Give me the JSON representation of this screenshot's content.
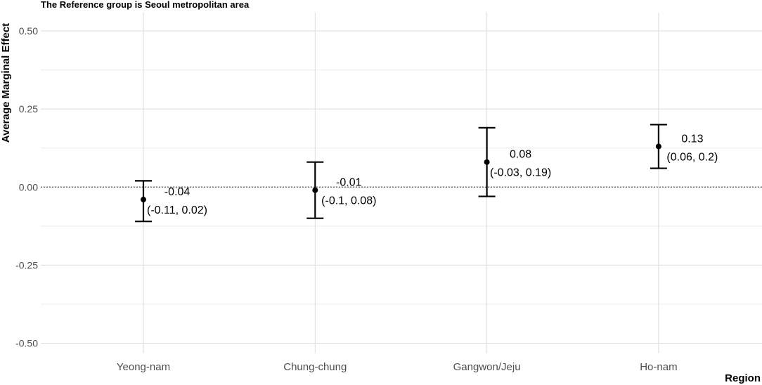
{
  "chart_data": {
    "type": "scatter",
    "title": "The Reference group is Seoul metropolitan area",
    "xlabel": "Region",
    "ylabel": "Average Marginal Effect",
    "categories": [
      "Yeong-nam",
      "Chung-chung",
      "Gangwon/Jeju",
      "Ho-nam"
    ],
    "y_ticks": [
      "0.50",
      "0.25",
      "0.00",
      "-0.25",
      "-0.50"
    ],
    "ylim": [
      -0.5,
      0.5
    ],
    "reference_line": 0,
    "grid": true,
    "points": [
      {
        "category": "Yeong-nam",
        "estimate": -0.04,
        "lower": -0.11,
        "upper": 0.02,
        "label": "-0.04",
        "ci_label": "(-0.11, 0.02)"
      },
      {
        "category": "Chung-chung",
        "estimate": -0.01,
        "lower": -0.1,
        "upper": 0.08,
        "label": "-0.01",
        "ci_label": "(-0.1, 0.08)"
      },
      {
        "category": "Gangwon/Jeju",
        "estimate": 0.08,
        "lower": -0.03,
        "upper": 0.19,
        "label": "0.08",
        "ci_label": "(-0.03, 0.19)"
      },
      {
        "category": "Ho-nam",
        "estimate": 0.13,
        "lower": 0.06,
        "upper": 0.2,
        "label": "0.13",
        "ci_label": "(0.06, 0.2)"
      }
    ]
  }
}
